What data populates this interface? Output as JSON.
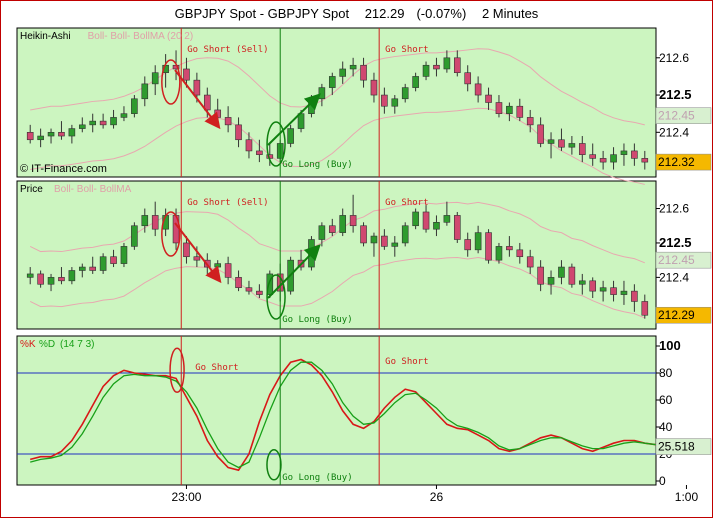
{
  "title": {
    "symbol": "GBPJPY Spot - GBPJPY Spot",
    "price": "212.29",
    "change": "(-0.07%)",
    "timeframe": "2 Minutes"
  },
  "watermark": "IT-Finance.com",
  "colors": {
    "panel_bg": "#ccf5c0",
    "bull": "#2e9b2e",
    "bear": "#d04870",
    "signal_short": "#d02020",
    "signal_long": "#108010",
    "k_line": "#d81818",
    "d_line": "#18a018",
    "ref_line": "#2030c0",
    "price_tag_bg": "#f5b800"
  },
  "annotations": {
    "go_short_sell": "Go Short (Sell)",
    "go_short": "Go Short",
    "go_long_buy": "Go Long (Buy)"
  },
  "chart_data": [
    {
      "type": "candlestick",
      "panel": "Heikin-Ashi",
      "legend": [
        "Heikin-Ashi",
        "Boll- Boll- BollMA (20 2)"
      ],
      "y_ticks": [
        "212.6",
        "212.5",
        "212.4"
      ],
      "ylim": [
        212.28,
        212.68
      ],
      "last_price_tag": "212.32",
      "band_tag": "212.45",
      "ohlc": [
        [
          212.4,
          212.42,
          212.37,
          212.38
        ],
        [
          212.38,
          212.41,
          212.36,
          212.39
        ],
        [
          212.39,
          212.41,
          212.37,
          212.4
        ],
        [
          212.4,
          212.43,
          212.38,
          212.39
        ],
        [
          212.39,
          212.42,
          212.37,
          212.41
        ],
        [
          212.41,
          212.44,
          212.4,
          212.42
        ],
        [
          212.42,
          212.45,
          212.4,
          212.43
        ],
        [
          212.43,
          212.45,
          212.41,
          212.42
        ],
        [
          212.42,
          212.46,
          212.41,
          212.44
        ],
        [
          212.44,
          212.47,
          212.43,
          212.45
        ],
        [
          212.45,
          212.5,
          212.44,
          212.49
        ],
        [
          212.49,
          212.55,
          212.47,
          212.53
        ],
        [
          212.53,
          212.58,
          212.5,
          212.56
        ],
        [
          212.56,
          212.61,
          212.52,
          212.58
        ],
        [
          212.58,
          212.62,
          212.54,
          212.57
        ],
        [
          212.57,
          212.6,
          212.52,
          212.54
        ],
        [
          212.54,
          212.56,
          212.48,
          212.5
        ],
        [
          212.5,
          212.52,
          212.44,
          212.46
        ],
        [
          212.46,
          212.49,
          212.42,
          212.44
        ],
        [
          212.44,
          212.47,
          212.4,
          212.42
        ],
        [
          212.42,
          212.44,
          212.36,
          212.38
        ],
        [
          212.38,
          212.4,
          212.33,
          212.35
        ],
        [
          212.35,
          212.38,
          212.32,
          212.34
        ],
        [
          212.34,
          212.37,
          212.31,
          212.33
        ],
        [
          212.33,
          212.38,
          212.32,
          212.37
        ],
        [
          212.37,
          212.42,
          212.36,
          212.41
        ],
        [
          212.41,
          212.46,
          212.4,
          212.45
        ],
        [
          212.45,
          212.5,
          212.44,
          212.49
        ],
        [
          212.49,
          212.53,
          212.47,
          212.52
        ],
        [
          212.52,
          212.56,
          212.5,
          212.55
        ],
        [
          212.55,
          212.59,
          212.53,
          212.57
        ],
        [
          212.57,
          212.6,
          212.55,
          212.58
        ],
        [
          212.58,
          212.6,
          212.52,
          212.54
        ],
        [
          212.54,
          212.56,
          212.48,
          212.5
        ],
        [
          212.5,
          212.52,
          212.45,
          212.47
        ],
        [
          212.47,
          212.5,
          212.45,
          212.49
        ],
        [
          212.49,
          212.53,
          212.48,
          212.52
        ],
        [
          212.52,
          212.56,
          212.51,
          212.55
        ],
        [
          212.55,
          212.59,
          212.54,
          212.58
        ],
        [
          212.58,
          212.6,
          212.55,
          212.57
        ],
        [
          212.57,
          212.62,
          212.56,
          212.6
        ],
        [
          212.6,
          212.62,
          212.55,
          212.56
        ],
        [
          212.56,
          212.58,
          212.51,
          212.53
        ],
        [
          212.53,
          212.55,
          212.48,
          212.5
        ],
        [
          212.5,
          212.52,
          212.46,
          212.48
        ],
        [
          212.48,
          212.5,
          212.44,
          212.45
        ],
        [
          212.45,
          212.48,
          212.43,
          212.47
        ],
        [
          212.47,
          212.49,
          212.43,
          212.44
        ],
        [
          212.44,
          212.46,
          212.4,
          212.42
        ],
        [
          212.42,
          212.44,
          212.36,
          212.37
        ],
        [
          212.37,
          212.4,
          212.33,
          212.38
        ],
        [
          212.38,
          212.41,
          212.35,
          212.36
        ],
        [
          212.36,
          212.39,
          212.34,
          212.37
        ],
        [
          212.37,
          212.39,
          212.32,
          212.34
        ],
        [
          212.34,
          212.37,
          212.31,
          212.33
        ],
        [
          212.33,
          212.35,
          212.3,
          212.32
        ],
        [
          212.32,
          212.36,
          212.3,
          212.34
        ],
        [
          212.34,
          212.37,
          212.31,
          212.35
        ],
        [
          212.35,
          212.37,
          212.31,
          212.33
        ],
        [
          212.33,
          212.35,
          212.3,
          212.32
        ]
      ]
    },
    {
      "type": "candlestick",
      "panel": "Price",
      "legend": [
        "Price",
        "Boll- Boll- BollMA"
      ],
      "y_ticks": [
        "212.6",
        "212.5",
        "212.4"
      ],
      "ylim": [
        212.25,
        212.68
      ],
      "last_price_tag": "212.29",
      "band_tag": "212.45",
      "ohlc": [
        [
          212.4,
          212.43,
          212.38,
          212.41
        ],
        [
          212.41,
          212.42,
          212.37,
          212.38
        ],
        [
          212.38,
          212.41,
          212.36,
          212.4
        ],
        [
          212.4,
          212.43,
          212.38,
          212.39
        ],
        [
          212.39,
          212.43,
          212.38,
          212.42
        ],
        [
          212.42,
          212.44,
          212.4,
          212.43
        ],
        [
          212.43,
          212.46,
          212.41,
          212.42
        ],
        [
          212.42,
          212.47,
          212.41,
          212.46
        ],
        [
          212.46,
          212.48,
          212.43,
          212.44
        ],
        [
          212.44,
          212.5,
          212.43,
          212.49
        ],
        [
          212.49,
          212.56,
          212.48,
          212.55
        ],
        [
          212.55,
          212.6,
          212.53,
          212.58
        ],
        [
          212.58,
          212.62,
          212.52,
          212.54
        ],
        [
          212.54,
          212.6,
          212.52,
          212.58
        ],
        [
          212.58,
          212.6,
          212.48,
          212.5
        ],
        [
          212.5,
          212.52,
          212.44,
          212.46
        ],
        [
          212.46,
          212.49,
          212.43,
          212.45
        ],
        [
          212.45,
          212.47,
          212.41,
          212.43
        ],
        [
          212.43,
          212.45,
          212.4,
          212.44
        ],
        [
          212.44,
          212.46,
          212.38,
          212.4
        ],
        [
          212.4,
          212.42,
          212.36,
          212.37
        ],
        [
          212.37,
          212.39,
          212.35,
          212.36
        ],
        [
          212.36,
          212.38,
          212.34,
          212.35
        ],
        [
          212.35,
          212.42,
          212.34,
          212.41
        ],
        [
          212.41,
          212.44,
          212.33,
          212.36
        ],
        [
          212.36,
          212.46,
          212.35,
          212.45
        ],
        [
          212.45,
          212.48,
          212.42,
          212.43
        ],
        [
          212.43,
          212.52,
          212.42,
          212.51
        ],
        [
          212.51,
          212.56,
          212.49,
          212.55
        ],
        [
          212.55,
          212.57,
          212.52,
          212.53
        ],
        [
          212.53,
          212.6,
          212.52,
          212.58
        ],
        [
          212.58,
          212.64,
          212.53,
          212.55
        ],
        [
          212.55,
          212.56,
          212.49,
          212.5
        ],
        [
          212.5,
          212.53,
          212.46,
          212.52
        ],
        [
          212.52,
          212.54,
          212.48,
          212.49
        ],
        [
          212.49,
          212.52,
          212.46,
          212.5
        ],
        [
          212.5,
          212.56,
          212.49,
          212.55
        ],
        [
          212.55,
          212.6,
          212.54,
          212.59
        ],
        [
          212.59,
          212.61,
          212.53,
          212.54
        ],
        [
          212.54,
          212.58,
          212.52,
          212.56
        ],
        [
          212.56,
          212.62,
          212.55,
          212.58
        ],
        [
          212.58,
          212.59,
          212.5,
          212.51
        ],
        [
          212.51,
          212.53,
          212.46,
          212.48
        ],
        [
          212.48,
          212.55,
          212.47,
          212.53
        ],
        [
          212.53,
          212.54,
          212.44,
          212.45
        ],
        [
          212.45,
          212.5,
          212.44,
          212.49
        ],
        [
          212.49,
          212.52,
          212.46,
          212.48
        ],
        [
          212.48,
          212.5,
          212.44,
          212.46
        ],
        [
          212.46,
          212.48,
          212.41,
          212.43
        ],
        [
          212.43,
          212.45,
          212.36,
          212.38
        ],
        [
          212.38,
          212.42,
          212.35,
          212.4
        ],
        [
          212.4,
          212.45,
          212.38,
          212.43
        ],
        [
          212.43,
          212.44,
          212.37,
          212.38
        ],
        [
          212.38,
          212.41,
          212.35,
          212.39
        ],
        [
          212.39,
          212.4,
          212.34,
          212.36
        ],
        [
          212.36,
          212.39,
          212.33,
          212.37
        ],
        [
          212.37,
          212.39,
          212.33,
          212.35
        ],
        [
          212.35,
          212.39,
          212.32,
          212.36
        ],
        [
          212.36,
          212.38,
          212.3,
          212.33
        ],
        [
          212.33,
          212.35,
          212.28,
          212.29
        ]
      ]
    },
    {
      "type": "line",
      "panel": "%K %D (14 7 3)",
      "legend": [
        "%K",
        "%D",
        "(14 7 3)"
      ],
      "ylim": [
        0,
        100
      ],
      "y_ticks": [
        "100",
        "80",
        "60",
        "40",
        "20",
        "0"
      ],
      "ref_lines": [
        80,
        20
      ],
      "last_value_tag": "25.518",
      "x_tick_labels": [
        "23:00",
        "26",
        "1:00"
      ],
      "x_tick_index": [
        15,
        39,
        63
      ],
      "series": [
        {
          "name": "%K",
          "values": [
            16,
            18,
            18,
            22,
            30,
            42,
            56,
            70,
            78,
            82,
            80,
            79,
            78,
            78,
            76,
            62,
            48,
            30,
            18,
            10,
            8,
            20,
            44,
            64,
            78,
            88,
            90,
            86,
            78,
            66,
            52,
            42,
            39,
            44,
            54,
            62,
            68,
            66,
            58,
            50,
            42,
            39,
            38,
            34,
            30,
            24,
            22,
            24,
            28,
            32,
            34,
            32,
            28,
            24,
            22,
            25,
            28,
            30,
            30,
            28,
            27,
            26,
            25,
            25.5
          ]
        },
        {
          "name": "%D",
          "values": [
            14,
            16,
            17,
            19,
            25,
            35,
            48,
            62,
            72,
            78,
            79,
            78,
            78,
            77,
            74,
            66,
            54,
            38,
            24,
            14,
            10,
            14,
            32,
            52,
            70,
            82,
            88,
            88,
            82,
            72,
            58,
            48,
            42,
            43,
            50,
            58,
            64,
            65,
            60,
            54,
            46,
            41,
            39,
            36,
            32,
            26,
            23,
            24,
            27,
            30,
            32,
            32,
            29,
            26,
            24,
            24,
            26,
            28,
            29,
            28,
            27,
            26,
            25.5,
            25.5
          ]
        }
      ]
    }
  ]
}
